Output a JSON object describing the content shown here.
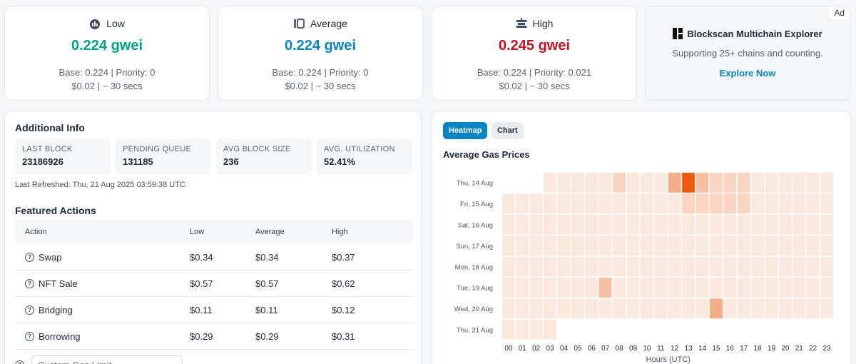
{
  "gas_cards": [
    {
      "label": "Low",
      "icon": "tortoise-icon",
      "value": "0.224 gwei",
      "color": "#00a186",
      "detail": "Base: 0.224 | Priority: 0",
      "cost": "$0.02 | ~ 30 secs"
    },
    {
      "label": "Average",
      "icon": "average-icon",
      "value": "0.224 gwei",
      "color": "#0784c3",
      "detail": "Base: 0.224 | Priority: 0",
      "cost": "$0.02 | ~ 30 secs"
    },
    {
      "label": "High",
      "icon": "rocket-icon",
      "value": "0.245 gwei",
      "color": "#c1121f",
      "detail": "Base: 0.224 | Priority: 0.021",
      "cost": "$0.02 | ~ 30 secs"
    }
  ],
  "ad": {
    "badge": "Ad",
    "title": "Blockscan Multichain Explorer",
    "description": "Supporting 25+ chains and counting.",
    "link": "Explore Now"
  },
  "additional_info": {
    "title": "Additional Info",
    "stats": [
      {
        "label": "LAST BLOCK",
        "value": "23186926"
      },
      {
        "label": "PENDING QUEUE",
        "value": "131185"
      },
      {
        "label": "AVG BLOCK SIZE",
        "value": "236"
      },
      {
        "label": "AVG. UTILIZATION",
        "value": "52.41%"
      }
    ],
    "last_refreshed": "Last Refreshed: Thu, 21 Aug 2025 03:59:38 UTC"
  },
  "featured": {
    "title": "Featured Actions",
    "headers": [
      "Action",
      "Low",
      "Average",
      "High"
    ],
    "rows": [
      {
        "action": "Swap",
        "low": "$0.34",
        "avg": "$0.34",
        "high": "$0.37"
      },
      {
        "action": "NFT Sale",
        "low": "$0.57",
        "avg": "$0.57",
        "high": "$0.62"
      },
      {
        "action": "Bridging",
        "low": "$0.11",
        "avg": "$0.11",
        "high": "$0.12"
      },
      {
        "action": "Borrowing",
        "low": "$0.29",
        "avg": "$0.29",
        "high": "$0.31"
      }
    ],
    "custom_placeholder": "Custom Gas Limit"
  },
  "right_panel": {
    "tabs": [
      "Heatmap",
      "Chart"
    ],
    "active_tab": "Heatmap"
  },
  "chart_data": {
    "type": "heatmap",
    "title": "Average Gas Prices",
    "xlabel": "Hours (UTC)",
    "x": [
      "00",
      "01",
      "02",
      "03",
      "04",
      "05",
      "06",
      "07",
      "08",
      "09",
      "10",
      "11",
      "12",
      "13",
      "14",
      "15",
      "16",
      "17",
      "18",
      "19",
      "20",
      "21",
      "22",
      "23"
    ],
    "y": [
      "Thu, 14 Aug",
      "Fri, 15 Aug",
      "Sat, 16 Aug",
      "Sun, 17 Aug",
      "Mon, 18 Aug",
      "Tue, 19 Aug",
      "Wed, 20 Aug",
      "Thu, 21 Aug"
    ],
    "intensity": [
      [
        null,
        null,
        null,
        1,
        1,
        1,
        1,
        1,
        2,
        1,
        1,
        1,
        4,
        8,
        3,
        2,
        2,
        2,
        1,
        1,
        1,
        1,
        1,
        1
      ],
      [
        1,
        1,
        1,
        1,
        1,
        1,
        1,
        1,
        1,
        1,
        1,
        1,
        1,
        2,
        2,
        2,
        2,
        2,
        1,
        1,
        1,
        1,
        1,
        1
      ],
      [
        1,
        1,
        1,
        1,
        1,
        1,
        1,
        1,
        1,
        1,
        1,
        1,
        1,
        1,
        1,
        1,
        1,
        1,
        1,
        1,
        1,
        1,
        1,
        1
      ],
      [
        1,
        1,
        1,
        1,
        1,
        1,
        1,
        1,
        1,
        1,
        1,
        1,
        1,
        1,
        1,
        1,
        1,
        1,
        1,
        1,
        1,
        1,
        1,
        1
      ],
      [
        1,
        1,
        1,
        1,
        1,
        1,
        1,
        1,
        1,
        1,
        1,
        1,
        1,
        1,
        1,
        1,
        1,
        1,
        1,
        1,
        1,
        1,
        1,
        1
      ],
      [
        1,
        1,
        1,
        1,
        1,
        1,
        1,
        3,
        1,
        1,
        1,
        1,
        1,
        1,
        1,
        1,
        1,
        1,
        1,
        1,
        1,
        1,
        1,
        1
      ],
      [
        1,
        1,
        1,
        1,
        1,
        1,
        1,
        1,
        1,
        1,
        1,
        1,
        1,
        1,
        1,
        4,
        1,
        1,
        1,
        1,
        1,
        1,
        1,
        1
      ],
      [
        1,
        1,
        1,
        1,
        null,
        null,
        null,
        null,
        null,
        null,
        null,
        null,
        null,
        null,
        null,
        null,
        null,
        null,
        null,
        null,
        null,
        null,
        null,
        null
      ]
    ],
    "intensity_range": [
      1,
      8
    ],
    "legend": "none"
  }
}
